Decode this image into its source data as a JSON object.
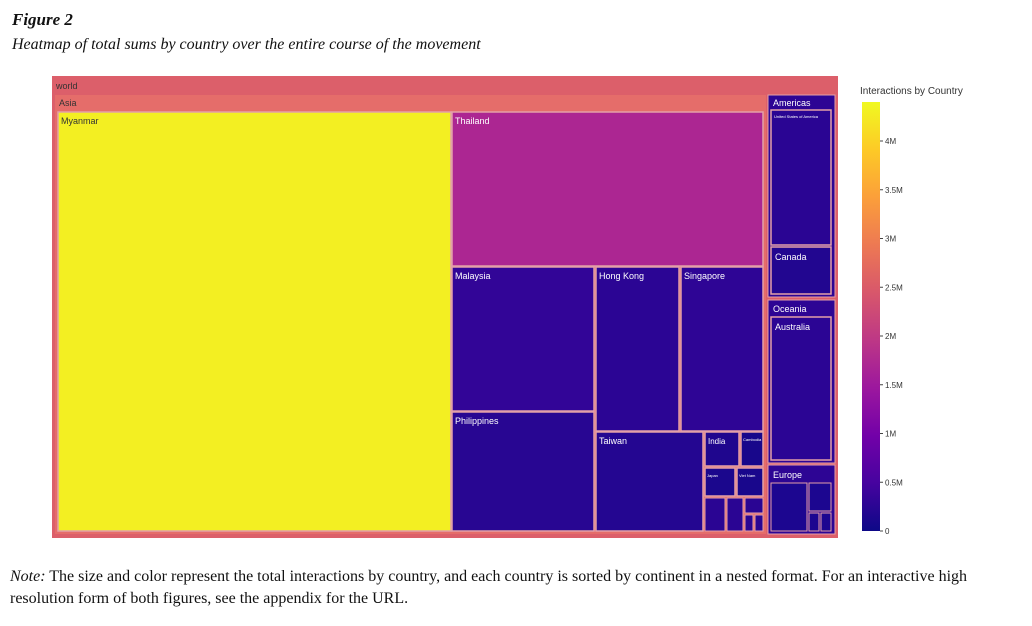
{
  "figure": {
    "label": "Figure 2",
    "caption": "Heatmap of total sums by country over the entire course of the movement"
  },
  "note": {
    "prefix": "Note:",
    "text": " The size and color represent the total interactions by country, and each country is sorted by continent in a nested format. For an interactive high resolution form of both figures, see the appendix for the URL."
  },
  "chart_data": {
    "type": "heatmap",
    "subtype": "treemap",
    "root": "world",
    "colorscale": "plasma",
    "color_range": [
      0,
      4400000
    ],
    "colorbar": {
      "title": "Interactions by Country",
      "ticks": [
        {
          "value": 0,
          "label": "0"
        },
        {
          "value": 500000,
          "label": "0.5M"
        },
        {
          "value": 1000000,
          "label": "1M"
        },
        {
          "value": 1500000,
          "label": "1.5M"
        },
        {
          "value": 2000000,
          "label": "2M"
        },
        {
          "value": 2500000,
          "label": "2.5M"
        },
        {
          "value": 3000000,
          "label": "3M"
        },
        {
          "value": 3500000,
          "label": "3.5M"
        },
        {
          "value": 4000000,
          "label": "4M"
        }
      ]
    },
    "continents": [
      {
        "name": "Asia",
        "countries": [
          {
            "name": "Myanmar",
            "value": 4300000
          },
          {
            "name": "Thailand",
            "value": 1700000
          },
          {
            "name": "Malaysia",
            "value": 320000
          },
          {
            "name": "Hong Kong",
            "value": 260000
          },
          {
            "name": "Singapore",
            "value": 280000
          },
          {
            "name": "Philippines",
            "value": 230000
          },
          {
            "name": "Taiwan",
            "value": 200000
          },
          {
            "name": "India",
            "value": 150000
          },
          {
            "name": "Cambodia",
            "value": 90000
          },
          {
            "name": "Japan",
            "value": 120000
          },
          {
            "name": "Viet Nam",
            "value": 100000
          }
        ]
      },
      {
        "name": "Americas",
        "countries": [
          {
            "name": "United States of America",
            "value": 250000
          },
          {
            "name": "Canada",
            "value": 180000
          }
        ]
      },
      {
        "name": "Oceania",
        "countries": [
          {
            "name": "Australia",
            "value": 260000
          }
        ]
      },
      {
        "name": "Europe",
        "countries": []
      }
    ]
  }
}
